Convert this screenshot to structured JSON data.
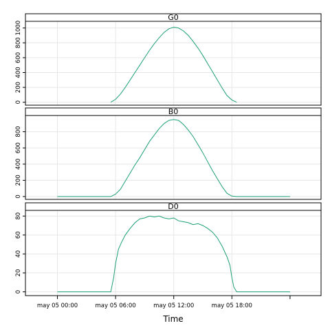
{
  "chart_data": {
    "type": "line",
    "xlabel": "Time",
    "x_ticks": [
      "may 05 00:00",
      "may 05 06:00",
      "may 05 12:00",
      "may 05 18:00"
    ],
    "x_range_hours": [
      -3.3,
      27.2
    ],
    "line_color": "#1b9e77",
    "grid": true,
    "panels": [
      {
        "name": "G0",
        "ylim": [
          -40,
          1090
        ],
        "yticks": [
          0,
          200,
          400,
          600,
          800,
          1000
        ],
        "series": [
          {
            "name": "G0",
            "x": [
              5.5,
              6.0,
              6.5,
              7.0,
              7.5,
              8.0,
              8.5,
              9.0,
              9.5,
              10.0,
              10.5,
              11.0,
              11.5,
              12.0,
              12.5,
              13.0,
              13.5,
              14.0,
              14.5,
              15.0,
              15.5,
              16.0,
              16.5,
              17.0,
              17.5,
              18.0,
              18.5
            ],
            "values": [
              0,
              40,
              110,
              200,
              300,
              400,
              500,
              600,
              700,
              790,
              870,
              940,
              990,
              1010,
              1000,
              960,
              900,
              820,
              730,
              630,
              520,
              410,
              300,
              190,
              90,
              30,
              0
            ]
          }
        ]
      },
      {
        "name": "B0",
        "ylim": [
          -35,
          1000
        ],
        "yticks": [
          0,
          200,
          400,
          600,
          800
        ],
        "series": [
          {
            "name": "B0",
            "x": [
              0,
              5.0,
              5.5,
              6.0,
              6.5,
              7.0,
              7.5,
              8.0,
              8.5,
              9.0,
              9.5,
              10.0,
              10.5,
              11.0,
              11.5,
              12.0,
              12.5,
              13.0,
              13.5,
              14.0,
              14.5,
              15.0,
              15.5,
              16.0,
              16.5,
              17.0,
              17.5,
              18.0,
              18.5,
              19.0,
              24.0
            ],
            "values": [
              0,
              0,
              0,
              30,
              90,
              190,
              290,
              390,
              480,
              580,
              680,
              760,
              840,
              900,
              940,
              950,
              940,
              890,
              820,
              740,
              640,
              540,
              430,
              320,
              220,
              120,
              40,
              5,
              0,
              0,
              0
            ]
          }
        ]
      },
      {
        "name": "D0",
        "ylim": [
          -4,
          86
        ],
        "yticks": [
          0,
          20,
          40,
          60,
          80
        ],
        "series": [
          {
            "name": "D0",
            "x": [
              0,
              5.5,
              5.8,
              6.0,
              6.3,
              6.6,
              7.0,
              7.5,
              8.0,
              8.5,
              9.0,
              9.5,
              10.0,
              10.5,
              11.0,
              11.5,
              12.0,
              12.5,
              13.0,
              13.5,
              14.0,
              14.5,
              15.0,
              15.5,
              16.0,
              16.5,
              17.0,
              17.5,
              17.8,
              18.0,
              18.2,
              18.5,
              19.0,
              24.0
            ],
            "values": [
              0,
              0,
              15,
              30,
              45,
              52,
              60,
              67,
              73,
              77,
              78,
              80,
              79,
              80,
              78,
              77,
              78,
              75,
              74,
              73,
              71,
              72,
              70,
              67,
              63,
              57,
              48,
              37,
              28,
              15,
              5,
              0,
              0,
              0
            ]
          }
        ]
      }
    ]
  }
}
